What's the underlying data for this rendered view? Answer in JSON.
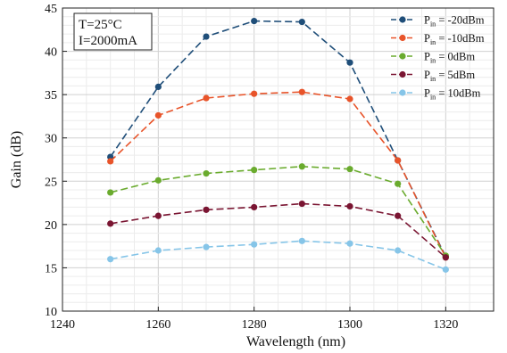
{
  "chart_data": {
    "type": "line",
    "xlabel": "Wavelength (nm)",
    "ylabel": "Gain (dB)",
    "xlim": [
      1240,
      1330
    ],
    "ylim": [
      10,
      45
    ],
    "xticks": [
      1240,
      1260,
      1280,
      1300,
      1320
    ],
    "yticks": [
      10,
      15,
      20,
      25,
      30,
      35,
      40,
      45
    ],
    "grid": true,
    "minor_grid": true,
    "legend_position": "top-right",
    "annotation": {
      "lines": [
        "T=25°C",
        "I=2000mA"
      ]
    },
    "x": [
      1250,
      1260,
      1270,
      1280,
      1290,
      1300,
      1310,
      1320
    ],
    "series": [
      {
        "name": "Pin = -20dBm",
        "legend_main": "P",
        "legend_sub": "in",
        "legend_rest": " = -20dBm",
        "color": "#1f4e79",
        "values": [
          27.8,
          35.9,
          41.7,
          43.5,
          43.4,
          38.7,
          27.4,
          16.3
        ]
      },
      {
        "name": "Pin = -10dBm",
        "legend_main": "P",
        "legend_sub": "in",
        "legend_rest": " = -10dBm",
        "color": "#e8542a",
        "values": [
          27.3,
          32.6,
          34.6,
          35.1,
          35.3,
          34.5,
          27.4,
          16.2
        ]
      },
      {
        "name": "Pin = 0dBm",
        "legend_main": "P",
        "legend_sub": "in",
        "legend_rest": " = 0dBm",
        "color": "#6aab2e",
        "values": [
          23.7,
          25.1,
          25.9,
          26.3,
          26.7,
          26.4,
          24.7,
          16.4
        ]
      },
      {
        "name": "Pin = 5dBm",
        "legend_main": "P",
        "legend_sub": "in",
        "legend_rest": " = 5dBm",
        "color": "#7a1532",
        "values": [
          20.1,
          21.0,
          21.7,
          22.0,
          22.4,
          22.1,
          21.0,
          16.2
        ]
      },
      {
        "name": "Pin = 10dBm",
        "legend_main": "P",
        "legend_sub": "in",
        "legend_rest": " = 10dBm",
        "color": "#86c5e8",
        "values": [
          16.0,
          17.0,
          17.4,
          17.7,
          18.1,
          17.8,
          17.0,
          14.8
        ]
      }
    ]
  }
}
